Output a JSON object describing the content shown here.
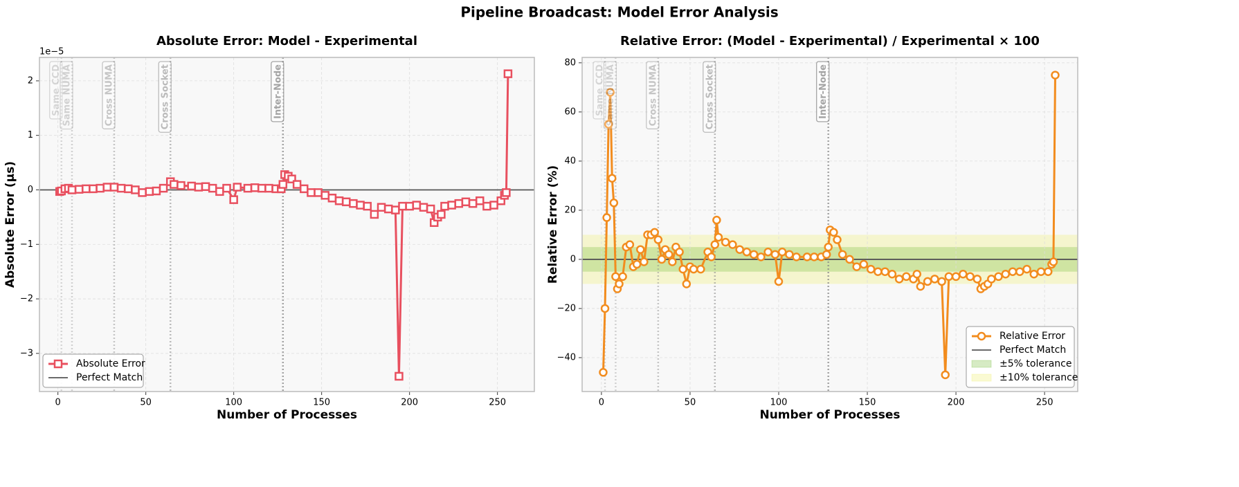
{
  "title": "Pipeline Broadcast: Model Error Analysis",
  "chart_data": [
    {
      "type": "line",
      "title": "Absolute Error: Model - Experimental",
      "x_label": "Number of Processes",
      "y_label": "Absolute Error (μs)",
      "offset_text": "1e−5",
      "x": [
        1,
        2,
        4,
        6,
        8,
        12,
        16,
        20,
        24,
        28,
        32,
        36,
        40,
        44,
        48,
        52,
        56,
        60,
        64,
        66,
        70,
        76,
        80,
        84,
        88,
        92,
        96,
        100,
        102,
        108,
        112,
        116,
        120,
        124,
        127,
        128,
        129,
        131,
        133,
        136,
        140,
        144,
        148,
        152,
        156,
        160,
        164,
        168,
        172,
        176,
        180,
        184,
        188,
        192,
        194,
        196,
        200,
        204,
        208,
        212,
        214,
        216,
        218,
        220,
        224,
        228,
        232,
        236,
        240,
        244,
        248,
        252,
        254,
        255,
        256
      ],
      "series": [
        {
          "name": "Absolute Error",
          "color": "#e8505f",
          "marker": "square",
          "values": [
            -0.03,
            -0.02,
            0.02,
            0.03,
            0.0,
            0.01,
            0.02,
            0.02,
            0.03,
            0.05,
            0.05,
            0.03,
            0.02,
            0.0,
            -0.05,
            -0.03,
            -0.02,
            0.03,
            0.15,
            0.1,
            0.08,
            0.07,
            0.05,
            0.06,
            0.03,
            -0.03,
            0.03,
            -0.18,
            0.05,
            0.03,
            0.04,
            0.03,
            0.03,
            0.02,
            0.02,
            0.1,
            0.28,
            0.25,
            0.2,
            0.1,
            0.02,
            -0.05,
            -0.05,
            -0.1,
            -0.15,
            -0.2,
            -0.22,
            -0.25,
            -0.28,
            -0.3,
            -0.45,
            -0.32,
            -0.35,
            -0.37,
            -3.42,
            -0.3,
            -0.3,
            -0.28,
            -0.32,
            -0.35,
            -0.6,
            -0.5,
            -0.45,
            -0.3,
            -0.28,
            -0.25,
            -0.22,
            -0.25,
            -0.2,
            -0.3,
            -0.28,
            -0.2,
            -0.1,
            -0.05,
            2.13
          ]
        }
      ],
      "reference_line": {
        "name": "Perfect Match",
        "value": 0,
        "color": "#555555"
      },
      "bands": [],
      "boundaries": [
        {
          "x": 2,
          "label": "Same CCD"
        },
        {
          "x": 8,
          "label": "Same NUMA"
        },
        {
          "x": 32,
          "label": "Cross NUMA"
        },
        {
          "x": 64,
          "label": "Cross Socket"
        },
        {
          "x": 128,
          "label": "Inter-Node"
        }
      ],
      "xlim": [
        -10.5,
        271
      ],
      "ylim": [
        -3.7,
        2.43
      ],
      "xticks": [
        0,
        50,
        100,
        150,
        200,
        250
      ],
      "yticks": [
        {
          "value": -3,
          "label": "−3"
        },
        {
          "value": -2,
          "label": "−2"
        },
        {
          "value": -1,
          "label": "−1"
        },
        0,
        1,
        2
      ],
      "grid": true,
      "legend": "lower left"
    },
    {
      "type": "line",
      "title": "Relative Error: (Model - Experimental) / Experimental × 100",
      "x_label": "Number of Processes",
      "y_label": "Relative Error (%)",
      "x": [
        1,
        2,
        3,
        4,
        5,
        6,
        7,
        8,
        9,
        10,
        12,
        14,
        16,
        18,
        20,
        22,
        24,
        26,
        28,
        30,
        32,
        34,
        36,
        38,
        40,
        42,
        44,
        46,
        48,
        50,
        52,
        56,
        60,
        62,
        64,
        65,
        66,
        70,
        74,
        78,
        82,
        86,
        90,
        94,
        98,
        100,
        102,
        106,
        110,
        116,
        120,
        124,
        127,
        128,
        129,
        131,
        133,
        136,
        140,
        144,
        148,
        152,
        156,
        160,
        164,
        168,
        172,
        176,
        178,
        180,
        184,
        188,
        192,
        194,
        196,
        200,
        204,
        208,
        212,
        214,
        216,
        218,
        220,
        224,
        228,
        232,
        236,
        240,
        244,
        248,
        252,
        254,
        255,
        256
      ],
      "series": [
        {
          "name": "Relative Error",
          "color": "#f28c1e",
          "marker": "circle",
          "values": [
            -46,
            -20,
            17,
            55,
            68,
            33,
            23,
            -7,
            -12,
            -10,
            -7,
            5,
            6,
            -3,
            -2,
            4,
            -1,
            10,
            10,
            11,
            8,
            0,
            4,
            2,
            -1,
            5,
            3,
            -4,
            -10,
            -3,
            -4,
            -4,
            3,
            1,
            6,
            16,
            9,
            7,
            6,
            4,
            3,
            2,
            1,
            3,
            2,
            -9,
            3,
            2,
            1,
            1,
            1,
            1,
            2,
            5,
            12,
            11,
            8,
            2,
            0,
            -3,
            -2,
            -4,
            -5,
            -5,
            -6,
            -8,
            -7,
            -8,
            -6,
            -11,
            -9,
            -8,
            -9,
            -47,
            -7,
            -7,
            -6,
            -7,
            -8,
            -12,
            -11,
            -10,
            -8,
            -7,
            -6,
            -5,
            -5,
            -4,
            -6,
            -5,
            -5,
            -2,
            -1,
            75
          ]
        }
      ],
      "reference_line": {
        "name": "Perfect Match",
        "value": 0,
        "color": "#555555"
      },
      "bands": [
        {
          "name": "±10% tolerance",
          "value": 10,
          "color": "rgba(240,240,110,0.3)"
        },
        {
          "name": "±5% tolerance",
          "value": 5,
          "color": "rgba(120,190,60,0.3)"
        }
      ],
      "boundaries": [
        {
          "x": 2,
          "label": "Same CCD"
        },
        {
          "x": 8,
          "label": "Same NUMA"
        },
        {
          "x": 32,
          "label": "Cross NUMA"
        },
        {
          "x": 64,
          "label": "Cross Socket"
        },
        {
          "x": 128,
          "label": "Inter-Node"
        }
      ],
      "xlim": [
        -10.9,
        268.7
      ],
      "ylim": [
        -53.8,
        82.2
      ],
      "xticks": [
        0,
        50,
        100,
        150,
        200,
        250
      ],
      "yticks": [
        {
          "value": -40,
          "label": "−40"
        },
        {
          "value": -20,
          "label": "−20"
        },
        0,
        20,
        40,
        60,
        80
      ],
      "grid": true,
      "legend": "lower right"
    }
  ]
}
